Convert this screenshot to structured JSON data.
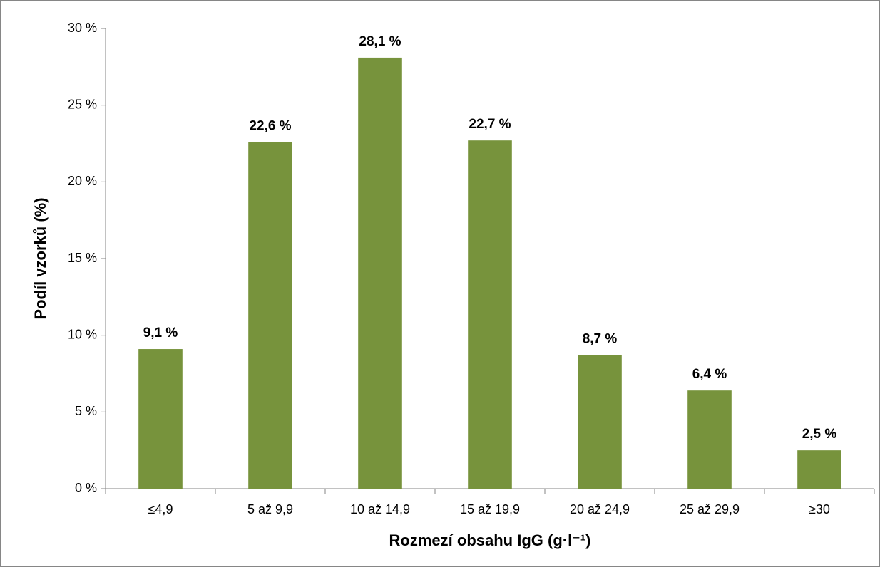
{
  "chart_data": {
    "type": "bar",
    "x_label": "Rozmezí obsahu IgG (g·l⁻¹)",
    "y_label": "Podíl vzorků (%)",
    "categories": [
      "≤4,9",
      "5 až 9,9",
      "10 až 14,9",
      "15 až 19,9",
      "20 až 24,9",
      "25 až 29,9",
      "≥30"
    ],
    "values": [
      9.1,
      22.6,
      28.1,
      22.7,
      8.7,
      6.4,
      2.5
    ],
    "value_labels": [
      "9,1 %",
      "22,6 %",
      "28,1 %",
      "22,7 %",
      "8,7 %",
      "6,4 %",
      "2,5 %"
    ],
    "color": "#77933c",
    "ylim": [
      0,
      30
    ],
    "yticks": [
      {
        "value": 0,
        "label": "0 %"
      },
      {
        "value": 5,
        "label": "5 %"
      },
      {
        "value": 10,
        "label": "10 %"
      },
      {
        "value": 15,
        "label": "15 %"
      },
      {
        "value": 20,
        "label": "20 %"
      },
      {
        "value": 25,
        "label": "25 %"
      },
      {
        "value": 30,
        "label": "30 %"
      }
    ],
    "grid": false
  }
}
